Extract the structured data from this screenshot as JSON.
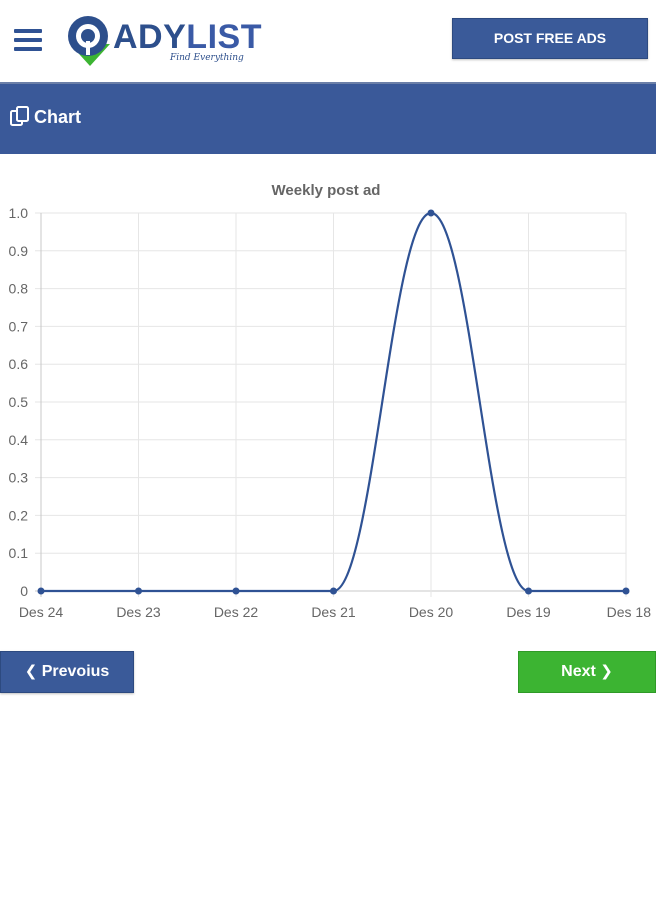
{
  "header": {
    "logo_main": "ADY",
    "logo_accent": "LIST",
    "logo_tagline": "Find Everything",
    "post_button_label": "POST FREE ADS"
  },
  "panel": {
    "title": "Chart"
  },
  "chart_data": {
    "type": "line",
    "title": "Weekly post ad",
    "categories": [
      "Des 24",
      "Des 23",
      "Des 22",
      "Des 21",
      "Des 20",
      "Des 19",
      "Des 18"
    ],
    "values": [
      0,
      0,
      0,
      0,
      1,
      0,
      0
    ],
    "ylim": [
      0,
      1.0
    ],
    "yticks": [
      "1.0",
      "0.9",
      "0.8",
      "0.7",
      "0.6",
      "0.5",
      "0.4",
      "0.3",
      "0.2",
      "0.1",
      "0"
    ],
    "grid": true,
    "line_color": "#2f5294"
  },
  "navigation": {
    "prev_label": "Prevoius",
    "next_label": "Next",
    "prev_icon": "chevron-left-icon",
    "next_icon": "chevron-right-icon"
  },
  "colors": {
    "brand_blue": "#3a5999",
    "accent_green": "#3cb432"
  }
}
